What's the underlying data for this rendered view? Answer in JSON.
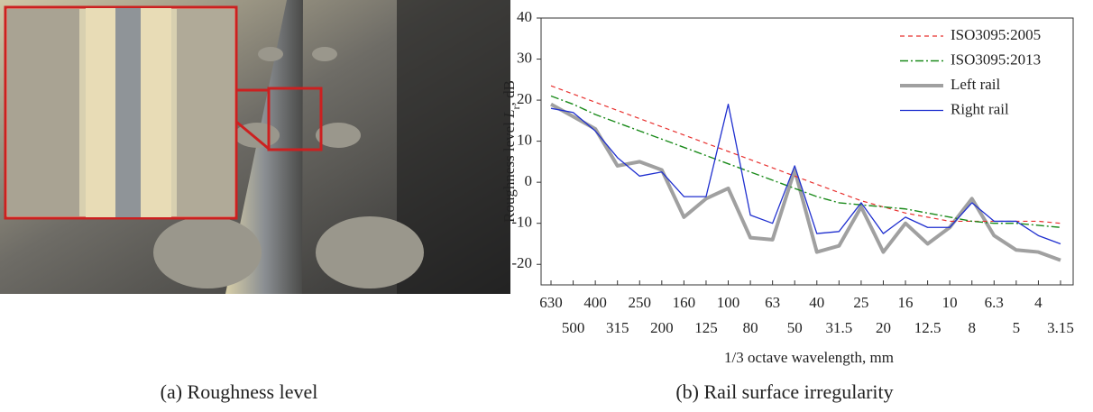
{
  "chart_data": {
    "type": "line",
    "ylabel": [
      "Roughness level ",
      "L",
      "r",
      ", dB"
    ],
    "xlabel": "1/3 octave wavelength, mm",
    "categories": [
      "630",
      "500",
      "400",
      "315",
      "250",
      "200",
      "160",
      "125",
      "100",
      "80",
      "63",
      "50",
      "40",
      "31.5",
      "25",
      "20",
      "16",
      "12.5",
      "10",
      "8",
      "6.3",
      "5",
      "4",
      "3.15"
    ],
    "ylim": [
      -25,
      40
    ],
    "yticks": [
      -20,
      -10,
      0,
      10,
      20,
      30,
      40
    ],
    "legend": "upper right",
    "series": [
      {
        "name": "ISO3095:2005",
        "color": "#e8312f",
        "dash": "dashed",
        "width": 1.2,
        "values": [
          23.5,
          21.5,
          19.5,
          17.5,
          15.5,
          13.5,
          11.5,
          9.5,
          7.5,
          5.5,
          3.5,
          1.5,
          -0.5,
          -2.5,
          -4.5,
          -6,
          -7.5,
          -8.5,
          -9.5,
          -9.5,
          -9.5,
          -9.5,
          -9.5,
          -10
        ]
      },
      {
        "name": "ISO3095:2013",
        "color": "#1a8a1a",
        "dash": "dashdot",
        "width": 1.4,
        "values": [
          21,
          19,
          16.5,
          14.5,
          12.5,
          10.5,
          8.5,
          6.5,
          4.5,
          2.5,
          0.5,
          -1.5,
          -3.5,
          -5,
          -5.5,
          -6,
          -6.5,
          -7.5,
          -8.5,
          -9.5,
          -10,
          -10,
          -10.5,
          -11
        ]
      },
      {
        "name": "Left rail",
        "color": "#a0a0a0",
        "dash": "solid",
        "width": 4,
        "values": [
          19,
          16,
          13,
          4,
          5,
          3,
          -8.5,
          -4,
          -1.5,
          -13.5,
          -14,
          3,
          -17,
          -15.5,
          -6,
          -17,
          -10,
          -15,
          -11,
          -4,
          -13,
          -16.5,
          -17,
          -19
        ]
      },
      {
        "name": "Right rail",
        "color": "#1f2fcf",
        "dash": "solid",
        "width": 1.3,
        "values": [
          18,
          17,
          12.5,
          6,
          1.5,
          2.5,
          -3.5,
          -3.5,
          19,
          -8,
          -10,
          4,
          -12.5,
          -12,
          -5,
          -12.5,
          -8.5,
          -11,
          -11,
          -5,
          -9.5,
          -9.5,
          -13,
          -15
        ]
      }
    ]
  },
  "captions": [
    "(a) Roughness level",
    "(b) Rail surface irregularity"
  ]
}
